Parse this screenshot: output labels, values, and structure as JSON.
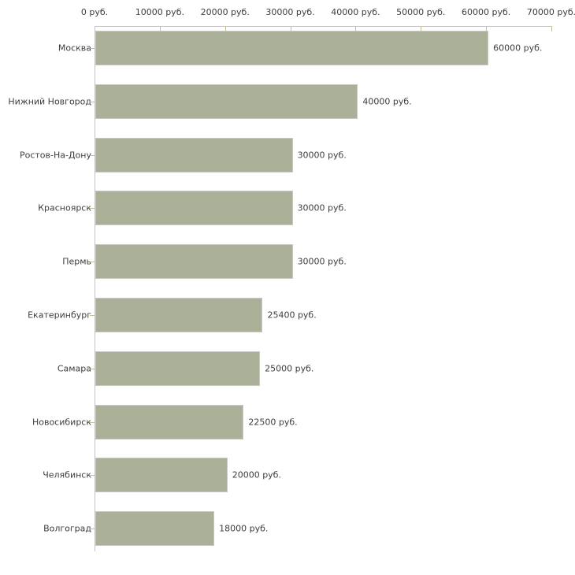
{
  "chart_data": {
    "type": "bar",
    "orientation": "horizontal",
    "title": "",
    "categories": [
      "Москва",
      "Нижний Новгород",
      "Ростов-На-Дону",
      "Красноярск",
      "Пермь",
      "Екатеринбург",
      "Самара",
      "Новосибирск",
      "Челябинск",
      "Волгоград"
    ],
    "values": [
      60000,
      40000,
      30000,
      30000,
      30000,
      25400,
      25000,
      22500,
      20000,
      18000
    ],
    "value_labels": [
      "60000 руб.",
      "40000 руб.",
      "30000 руб.",
      "30000 руб.",
      "30000 руб.",
      "25400 руб.",
      "25000 руб.",
      "22500 руб.",
      "20000 руб.",
      "18000 руб."
    ],
    "unit": "руб.",
    "xlabel": "",
    "ylabel": "",
    "xlim": [
      0,
      70000
    ],
    "x_ticks": [
      0,
      10000,
      20000,
      30000,
      40000,
      50000,
      60000,
      70000
    ],
    "x_tick_labels": [
      "0 руб.",
      "10000 руб.",
      "20000 руб.",
      "30000 руб.",
      "40000 руб.",
      "50000 руб.",
      "60000 руб.",
      "70000 руб."
    ],
    "grid": false,
    "legend_position": "none",
    "colors": {
      "bar_fill": "#abb199",
      "bar_border": "#c8c8c4",
      "axis_line": "#c2c2c2",
      "tick_mark": "#c2bf94",
      "text": "#3d3d3d",
      "background": "#ffffff"
    }
  }
}
